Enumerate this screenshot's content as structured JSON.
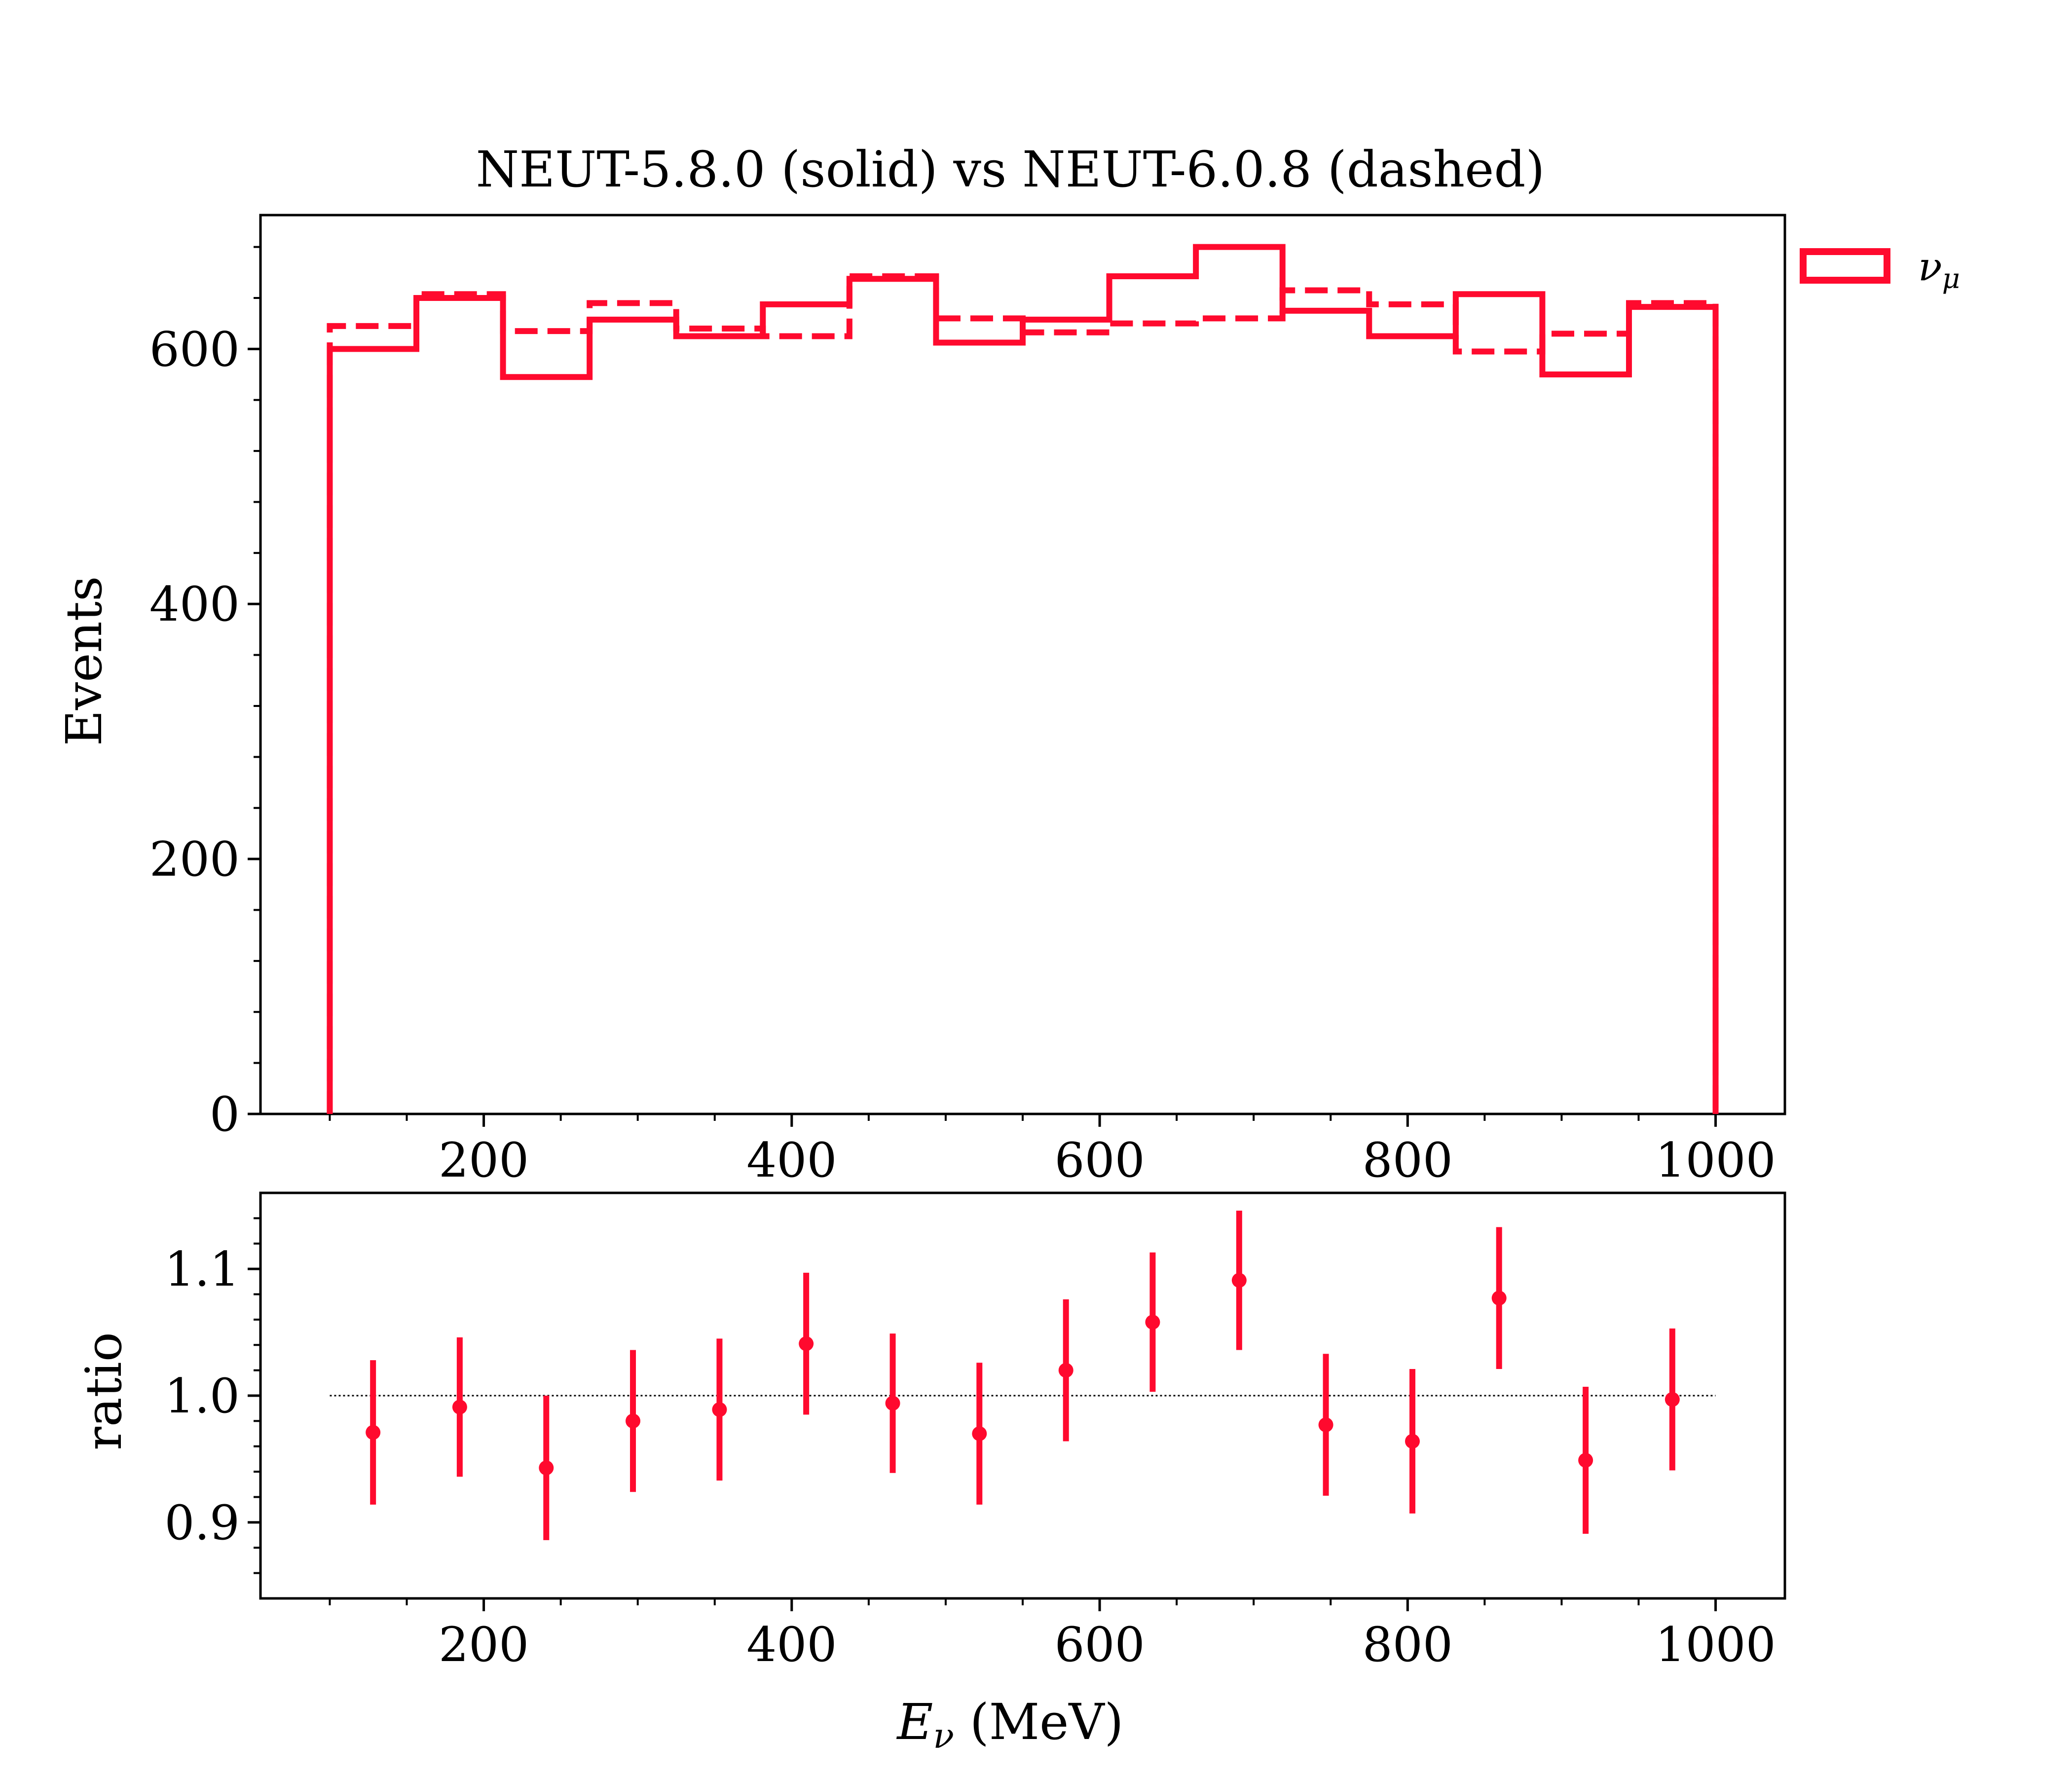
{
  "chart_data": [
    {
      "type": "histogram",
      "title": "NEUT-5.8.0 (solid) vs NEUT-6.0.8 (dashed)",
      "ylabel": "Events",
      "xlim": [
        55,
        1045
      ],
      "ylim": [
        0,
        705
      ],
      "xticks": [
        200,
        400,
        600,
        800,
        1000
      ],
      "yticks": [
        0,
        200,
        400,
        600
      ],
      "bin_edges": [
        100,
        156.25,
        212.5,
        268.75,
        325,
        381.25,
        437.5,
        493.75,
        550,
        606.25,
        662.5,
        718.75,
        775,
        831.25,
        887.5,
        943.75,
        1000
      ],
      "color": "#ff0a2e",
      "legend": {
        "position": "outside-top-right",
        "entries": [
          {
            "label": "ν",
            "sub": "μ"
          }
        ]
      },
      "series": [
        {
          "style": "solid",
          "values": [
            600,
            640,
            578,
            623,
            610,
            635,
            655,
            605,
            623,
            657,
            680,
            630,
            610,
            643,
            580,
            633
          ]
        },
        {
          "style": "dashed",
          "values": [
            618,
            643,
            614,
            636,
            616,
            610,
            657,
            624,
            613,
            620,
            624,
            646,
            635,
            598,
            612,
            636
          ]
        }
      ]
    },
    {
      "type": "errorbar",
      "ylabel": "ratio",
      "xlabel_main": "E",
      "xlabel_sub": "ν",
      "xlabel_unit": " (MeV)",
      "xlim": [
        55,
        1045
      ],
      "ylim": [
        0.84,
        1.16
      ],
      "xticks": [
        200,
        400,
        600,
        800,
        1000
      ],
      "yticks": [
        0.9,
        1.0,
        1.1
      ],
      "ytick_labels": [
        "0.9",
        "1.0",
        "1.1"
      ],
      "reference_line": 1.0,
      "color": "#ff0a2e",
      "x": [
        128.1,
        184.4,
        240.6,
        296.9,
        353.1,
        409.4,
        465.6,
        521.9,
        578.1,
        634.4,
        690.6,
        746.9,
        803.1,
        859.4,
        915.6,
        971.9
      ],
      "values": [
        0.971,
        0.991,
        0.943,
        0.98,
        0.989,
        1.041,
        0.994,
        0.97,
        1.02,
        1.058,
        1.091,
        0.977,
        0.964,
        1.077,
        0.949,
        0.997
      ],
      "errors": [
        0.057,
        0.055,
        0.057,
        0.056,
        0.056,
        0.056,
        0.055,
        0.056,
        0.056,
        0.055,
        0.055,
        0.056,
        0.057,
        0.056,
        0.058,
        0.056
      ]
    }
  ]
}
